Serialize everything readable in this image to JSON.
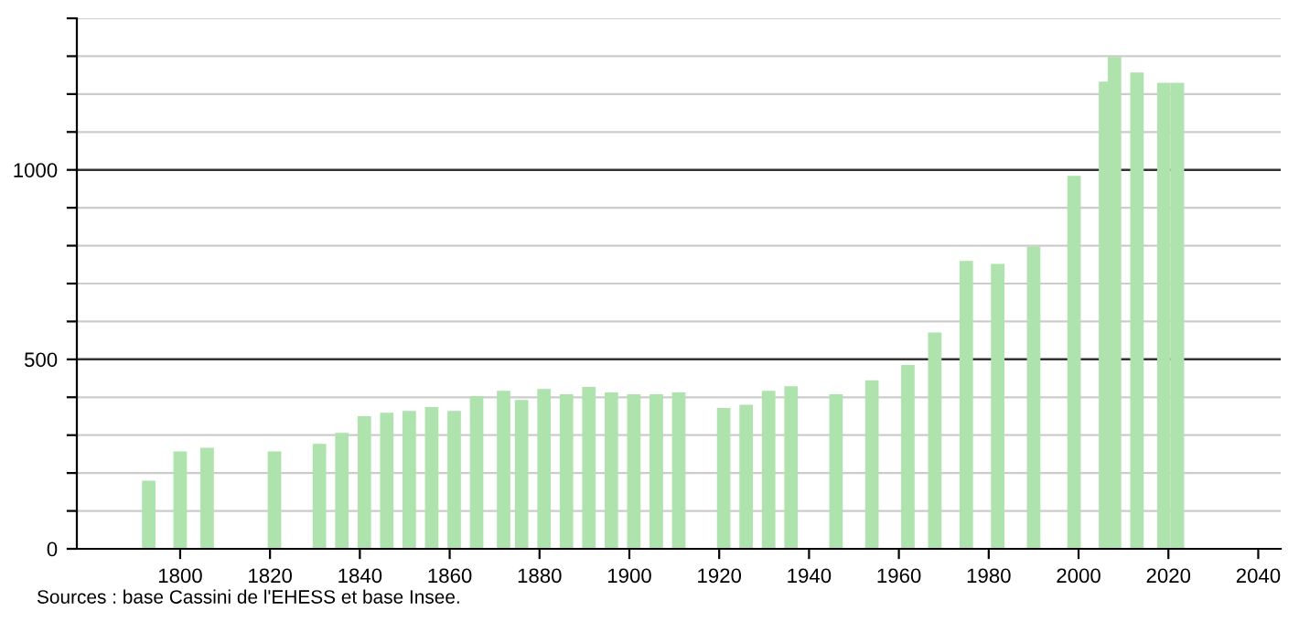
{
  "chart_data": {
    "type": "bar",
    "x": [
      1793,
      1800,
      1806,
      1821,
      1831,
      1836,
      1841,
      1846,
      1851,
      1856,
      1861,
      1866,
      1872,
      1876,
      1881,
      1886,
      1891,
      1896,
      1901,
      1906,
      1911,
      1921,
      1926,
      1931,
      1936,
      1946,
      1954,
      1962,
      1968,
      1975,
      1982,
      1990,
      1999,
      2006,
      2008,
      2013,
      2019,
      2022
    ],
    "values": [
      180,
      257,
      267,
      257,
      277,
      306,
      350,
      359,
      364,
      374,
      364,
      403,
      417,
      393,
      422,
      408,
      427,
      413,
      408,
      408,
      413,
      372,
      380,
      417,
      429,
      408,
      445,
      485,
      571,
      760,
      752,
      798,
      984,
      1233,
      1298,
      1257,
      1230,
      1230
    ],
    "color": "#aee3ae",
    "xlim": [
      1777,
      2045
    ],
    "xticks": [
      1800,
      1820,
      1840,
      1860,
      1880,
      1900,
      1920,
      1940,
      1960,
      1980,
      2000,
      2020,
      2040
    ],
    "ylim": [
      0,
      1400
    ],
    "yticks": [
      0,
      {
        "value": 100,
        "label": null
      },
      {
        "value": 200,
        "label": null
      },
      {
        "value": 300,
        "label": null
      },
      {
        "value": 400,
        "label": null
      },
      500,
      {
        "value": 600,
        "label": null
      },
      {
        "value": 700,
        "label": null
      },
      {
        "value": 800,
        "label": null
      },
      {
        "value": 900,
        "label": null
      },
      1000,
      {
        "value": 1100,
        "label": null
      },
      {
        "value": 1200,
        "label": null
      },
      {
        "value": 1300,
        "label": null
      },
      {
        "value": 1400,
        "label": null
      }
    ],
    "grid": "y",
    "annotations": [
      "Sources : base Cassini de l'EHESS et base Insee."
    ]
  }
}
